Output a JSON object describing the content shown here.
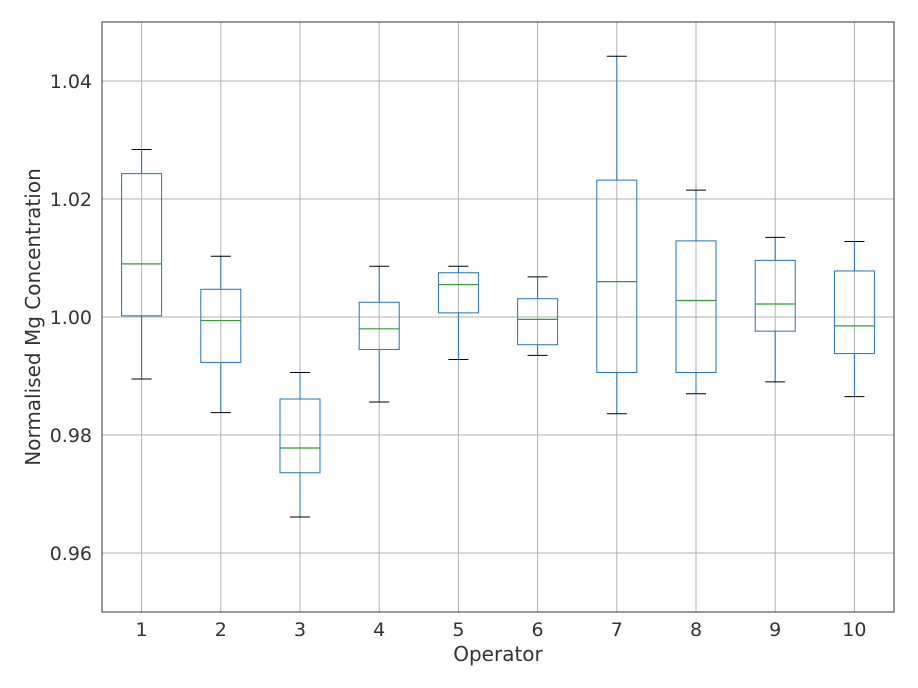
{
  "chart_data": {
    "type": "box",
    "title": "",
    "xlabel": "Operator",
    "ylabel": "Normalised Mg Concentration",
    "ylim": [
      0.95,
      1.05
    ],
    "yticks": [
      0.96,
      0.98,
      1.0,
      1.02,
      1.04
    ],
    "ytick_labels": [
      "0.96",
      "0.98",
      "1.00",
      "1.02",
      "1.04"
    ],
    "categories": [
      "1",
      "2",
      "3",
      "4",
      "5",
      "6",
      "7",
      "8",
      "9",
      "10"
    ],
    "grid": true,
    "legend": "none",
    "boxes": [
      {
        "whisker_low": 0.9895,
        "q1": 1.0002,
        "median": 1.009,
        "q3": 1.0243,
        "whisker_high": 1.0284
      },
      {
        "whisker_low": 0.9838,
        "q1": 0.9923,
        "median": 0.9994,
        "q3": 1.0047,
        "whisker_high": 1.0103
      },
      {
        "whisker_low": 0.9661,
        "q1": 0.9736,
        "median": 0.9778,
        "q3": 0.9861,
        "whisker_high": 0.9906
      },
      {
        "whisker_low": 0.9856,
        "q1": 0.9945,
        "median": 0.998,
        "q3": 1.0025,
        "whisker_high": 1.0086
      },
      {
        "whisker_low": 0.9928,
        "q1": 1.0007,
        "median": 1.0055,
        "q3": 1.0075,
        "whisker_high": 1.0086
      },
      {
        "whisker_low": 0.9935,
        "q1": 0.9953,
        "median": 0.9996,
        "q3": 1.0031,
        "whisker_high": 1.0068
      },
      {
        "whisker_low": 0.9836,
        "q1": 0.9906,
        "median": 1.006,
        "q3": 1.0232,
        "whisker_high": 1.0442
      },
      {
        "whisker_low": 0.987,
        "q1": 0.9906,
        "median": 1.0028,
        "q3": 1.0129,
        "whisker_high": 1.0215
      },
      {
        "whisker_low": 0.989,
        "q1": 0.9976,
        "median": 1.0022,
        "q3": 1.0096,
        "whisker_high": 1.0135
      },
      {
        "whisker_low": 0.9865,
        "q1": 0.9938,
        "median": 0.9985,
        "q3": 1.0078,
        "whisker_high": 1.0128
      }
    ],
    "colors": {
      "box": "#1f77b4",
      "whisker": "#1f77b4",
      "cap": "#000000",
      "median": "#2ca02c",
      "grid": "#b0b0b0",
      "frame": "#333333"
    }
  }
}
